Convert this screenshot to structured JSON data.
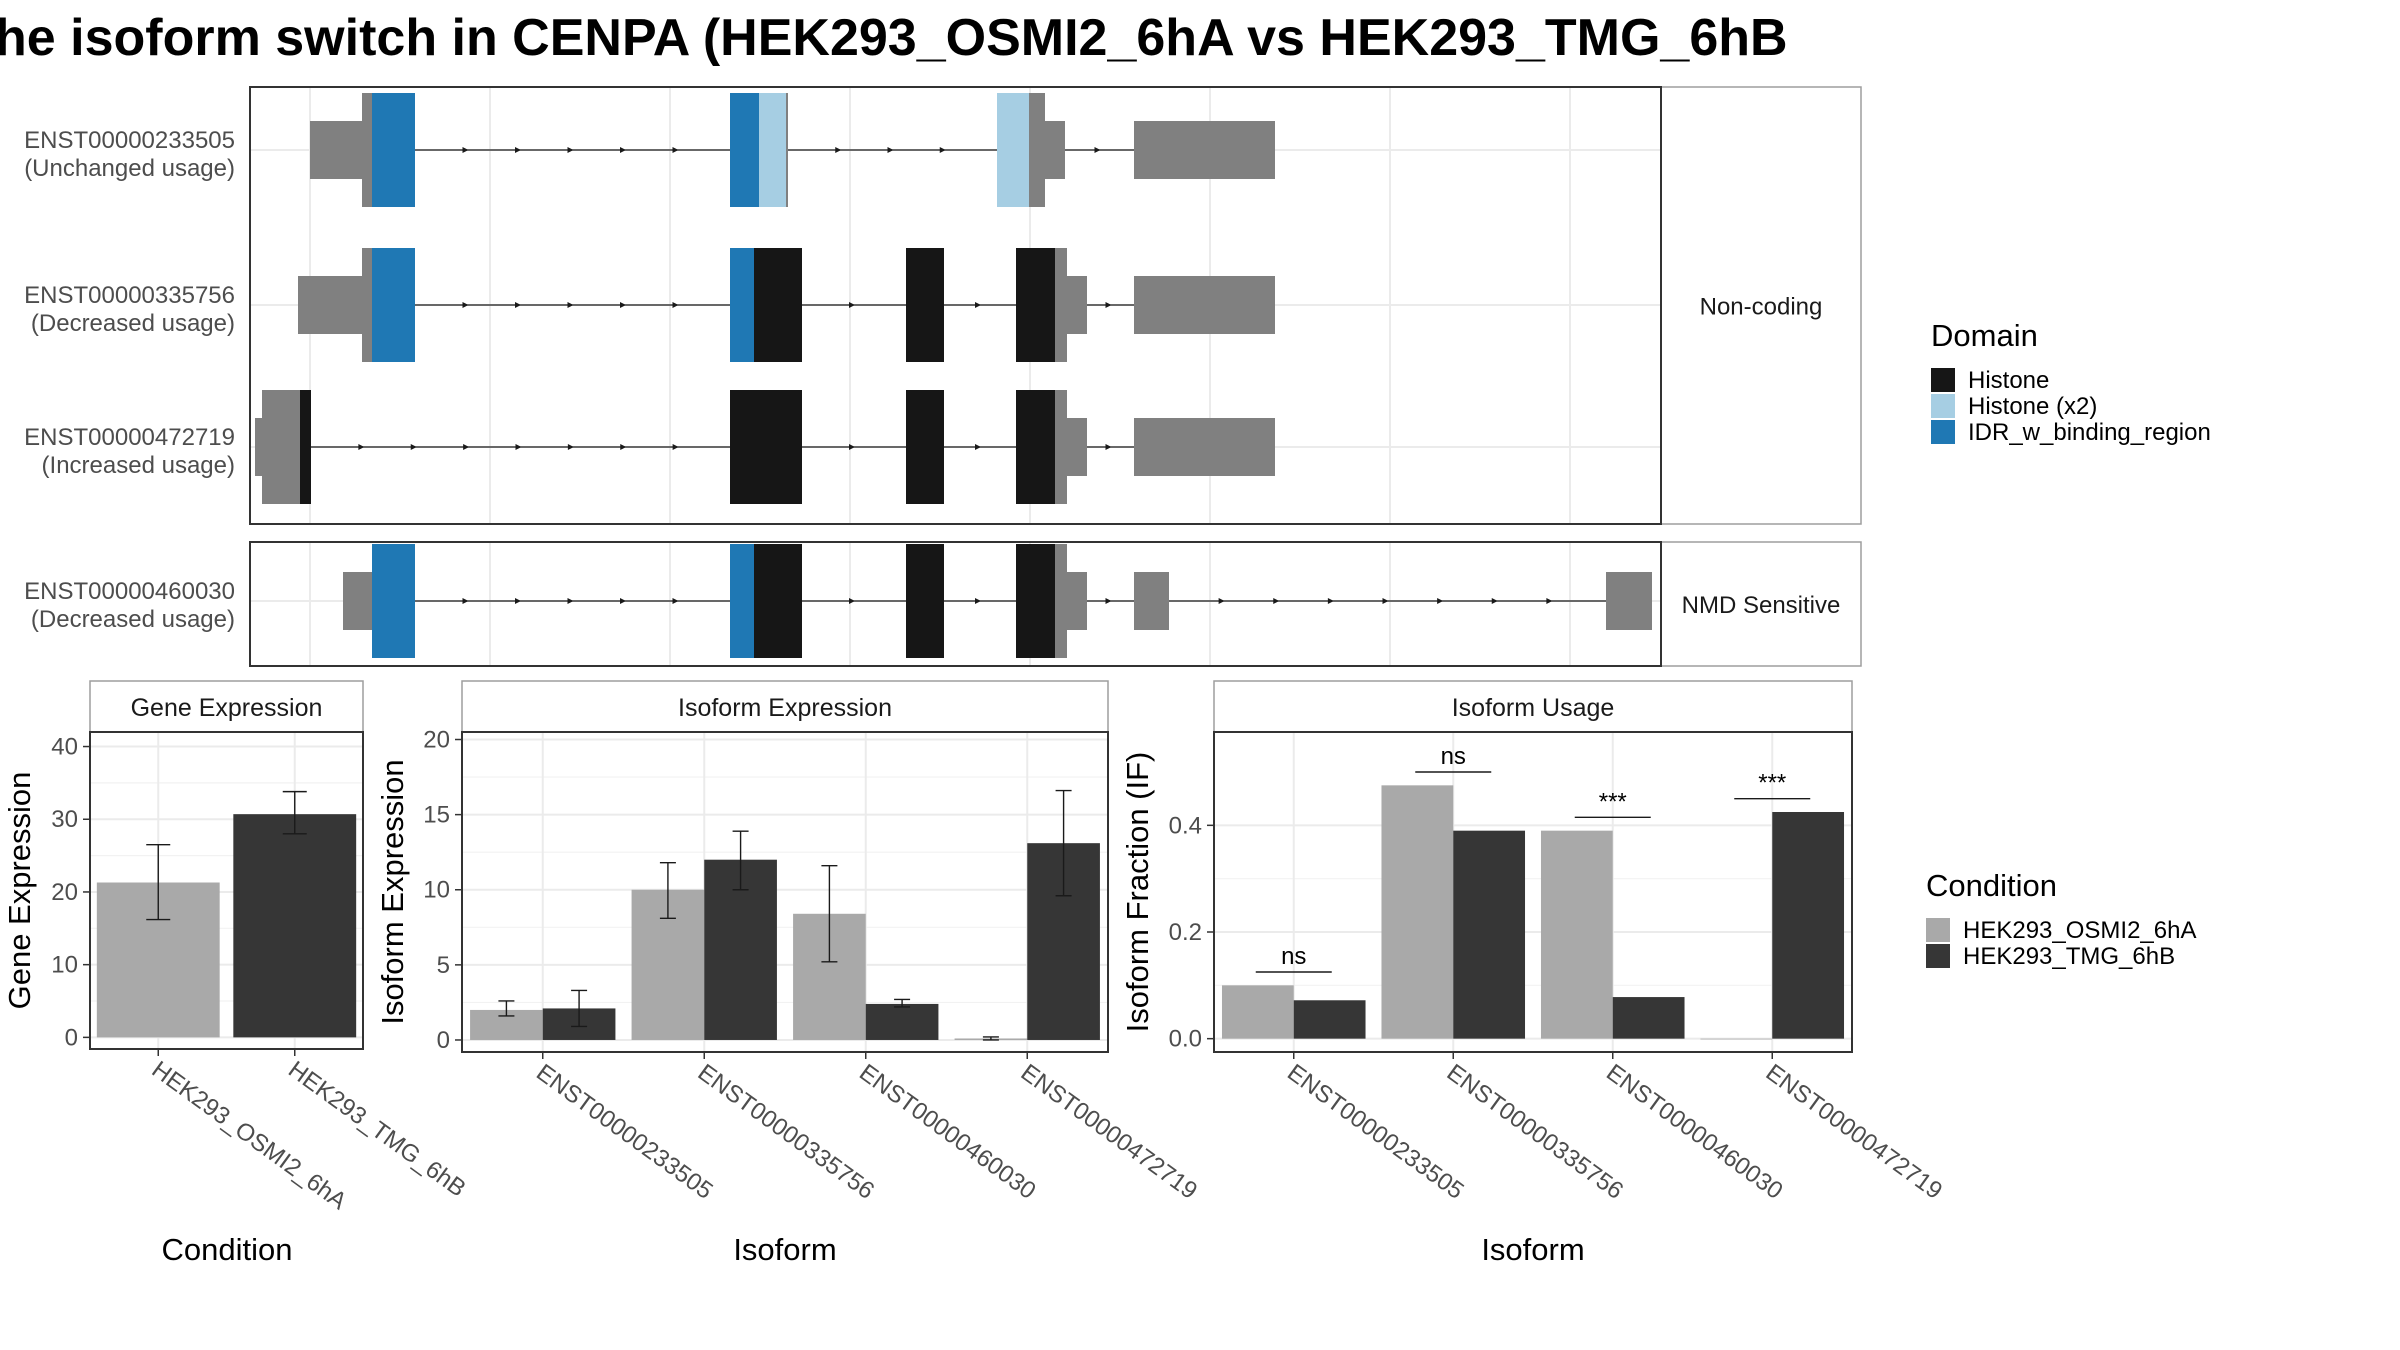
{
  "title": "he isoform switch in CENPA (HEK293_OSMI2_6hA vs HEK293_TMG_6hB",
  "structure": {
    "facets": [
      "Non-coding",
      "NMD Sensitive"
    ],
    "transcripts": [
      {
        "id": "ENST00000233505",
        "usage": "(Unchanged usage)",
        "facet": 0,
        "exons": [
          {
            "s": 60,
            "e": 112,
            "h": "short",
            "c": "grey"
          },
          {
            "s": 112,
            "e": 122,
            "h": "tall",
            "c": "grey"
          },
          {
            "s": 122,
            "e": 165,
            "h": "tall",
            "c": "idr"
          },
          {
            "s": 480,
            "e": 509,
            "h": "tall",
            "c": "idr"
          },
          {
            "s": 509,
            "e": 536,
            "h": "tall",
            "c": "histx2"
          },
          {
            "s": 536,
            "e": 538,
            "h": "tall",
            "c": "grey"
          },
          {
            "s": 747,
            "e": 779,
            "h": "tall",
            "c": "histx2"
          },
          {
            "s": 779,
            "e": 795,
            "h": "tall",
            "c": "grey"
          },
          {
            "s": 795,
            "e": 815,
            "h": "short",
            "c": "grey"
          },
          {
            "s": 884,
            "e": 1025,
            "h": "short",
            "c": "grey"
          }
        ]
      },
      {
        "id": "ENST00000335756",
        "usage": "(Decreased usage)",
        "facet": 0,
        "exons": [
          {
            "s": 48,
            "e": 112,
            "h": "short",
            "c": "grey"
          },
          {
            "s": 112,
            "e": 122,
            "h": "tall",
            "c": "grey"
          },
          {
            "s": 122,
            "e": 165,
            "h": "tall",
            "c": "idr"
          },
          {
            "s": 480,
            "e": 504,
            "h": "tall",
            "c": "idr"
          },
          {
            "s": 504,
            "e": 552,
            "h": "tall",
            "c": "histone"
          },
          {
            "s": 656,
            "e": 694,
            "h": "tall",
            "c": "histone"
          },
          {
            "s": 766,
            "e": 805,
            "h": "tall",
            "c": "histone"
          },
          {
            "s": 805,
            "e": 817,
            "h": "tall",
            "c": "grey"
          },
          {
            "s": 817,
            "e": 837,
            "h": "short",
            "c": "grey"
          },
          {
            "s": 884,
            "e": 1025,
            "h": "short",
            "c": "grey"
          }
        ]
      },
      {
        "id": "ENST00000472719",
        "usage": "(Increased usage)",
        "facet": 0,
        "exons": [
          {
            "s": 5,
            "e": 12,
            "h": "short",
            "c": "grey"
          },
          {
            "s": 12,
            "e": 50,
            "h": "tall",
            "c": "grey"
          },
          {
            "s": 50,
            "e": 61,
            "h": "tall",
            "c": "histone"
          },
          {
            "s": 480,
            "e": 552,
            "h": "tall",
            "c": "histone"
          },
          {
            "s": 656,
            "e": 694,
            "h": "tall",
            "c": "histone"
          },
          {
            "s": 766,
            "e": 805,
            "h": "tall",
            "c": "histone"
          },
          {
            "s": 805,
            "e": 817,
            "h": "tall",
            "c": "grey"
          },
          {
            "s": 817,
            "e": 837,
            "h": "short",
            "c": "grey"
          },
          {
            "s": 884,
            "e": 1025,
            "h": "short",
            "c": "grey"
          }
        ]
      },
      {
        "id": "ENST00000460030",
        "usage": "(Decreased usage)",
        "facet": 1,
        "exons": [
          {
            "s": 93,
            "e": 122,
            "h": "short",
            "c": "grey"
          },
          {
            "s": 122,
            "e": 165,
            "h": "tall",
            "c": "idr"
          },
          {
            "s": 480,
            "e": 504,
            "h": "tall",
            "c": "idr"
          },
          {
            "s": 504,
            "e": 552,
            "h": "tall",
            "c": "histone"
          },
          {
            "s": 656,
            "e": 694,
            "h": "tall",
            "c": "histone"
          },
          {
            "s": 766,
            "e": 805,
            "h": "tall",
            "c": "histone"
          },
          {
            "s": 805,
            "e": 817,
            "h": "tall",
            "c": "grey"
          },
          {
            "s": 817,
            "e": 837,
            "h": "short",
            "c": "grey"
          },
          {
            "s": 884,
            "e": 919,
            "h": "short",
            "c": "grey"
          },
          {
            "s": 1356,
            "e": 1402,
            "h": "short",
            "c": "grey"
          }
        ]
      }
    ]
  },
  "legend_domain": {
    "title": "Domain",
    "items": [
      {
        "label": "Histone",
        "color": "#161616"
      },
      {
        "label": "Histone (x2)",
        "color": "#a6cee3"
      },
      {
        "label": "IDR_w_binding_region",
        "color": "#1f78b4"
      }
    ]
  },
  "legend_condition": {
    "title": "Condition",
    "items": [
      {
        "label": "HEK293_OSMI2_6hA",
        "color": "#a9a9a9"
      },
      {
        "label": "HEK293_TMG_6hB",
        "color": "#363636"
      }
    ]
  },
  "chart_data": [
    {
      "type": "bar",
      "strip": "Gene Expression",
      "xlabel": "Condition",
      "ylabel": "Gene Expression",
      "categories": [
        "HEK293_OSMI2_6hA",
        "HEK293_TMG_6hB"
      ],
      "values": [
        21.3,
        30.7
      ],
      "errors": [
        [
          16.2,
          26.5
        ],
        [
          28.0,
          33.8
        ]
      ],
      "ylim": [
        -1.6,
        42
      ],
      "yticks": [
        0,
        10,
        20,
        30,
        40
      ]
    },
    {
      "type": "bar",
      "strip": "Isoform Expression",
      "xlabel": "Isoform",
      "ylabel": "Isoform Expression",
      "categories": [
        "ENST00000233505",
        "ENST00000335756",
        "ENST00000460030",
        "ENST00000472719"
      ],
      "series": [
        {
          "name": "HEK293_OSMI2_6hA",
          "values": [
            2.0,
            10.0,
            8.4,
            0.1
          ],
          "errors": [
            [
              1.6,
              2.6
            ],
            [
              8.1,
              11.8
            ],
            [
              5.2,
              11.6
            ],
            [
              0.0,
              0.2
            ]
          ]
        },
        {
          "name": "HEK293_TMG_6hB",
          "values": [
            2.1,
            12.0,
            2.4,
            13.1
          ],
          "errors": [
            [
              0.9,
              3.3
            ],
            [
              10.0,
              13.9
            ],
            [
              2.2,
              2.7
            ],
            [
              9.6,
              16.6
            ]
          ]
        }
      ],
      "ylim": [
        -0.8,
        20.5
      ],
      "yticks": [
        0,
        5,
        10,
        15,
        20
      ]
    },
    {
      "type": "bar",
      "strip": "Isoform Usage",
      "xlabel": "Isoform",
      "ylabel": "Isoform Fraction (IF)",
      "categories": [
        "ENST00000233505",
        "ENST00000335756",
        "ENST00000460030",
        "ENST00000472719"
      ],
      "series": [
        {
          "name": "HEK293_OSMI2_6hA",
          "values": [
            0.1,
            0.475,
            0.39,
            0.0
          ]
        },
        {
          "name": "HEK293_TMG_6hB",
          "values": [
            0.072,
            0.39,
            0.078,
            0.425
          ]
        }
      ],
      "significance": [
        "ns",
        "ns",
        "***",
        "***"
      ],
      "sig_level": [
        0.125,
        0.5,
        0.415,
        0.45
      ],
      "ylim": [
        -0.025,
        0.575
      ],
      "yticks": [
        0.0,
        0.2,
        0.4
      ],
      "ytick_labels": [
        "0.0",
        "0.2",
        "0.4"
      ]
    }
  ]
}
